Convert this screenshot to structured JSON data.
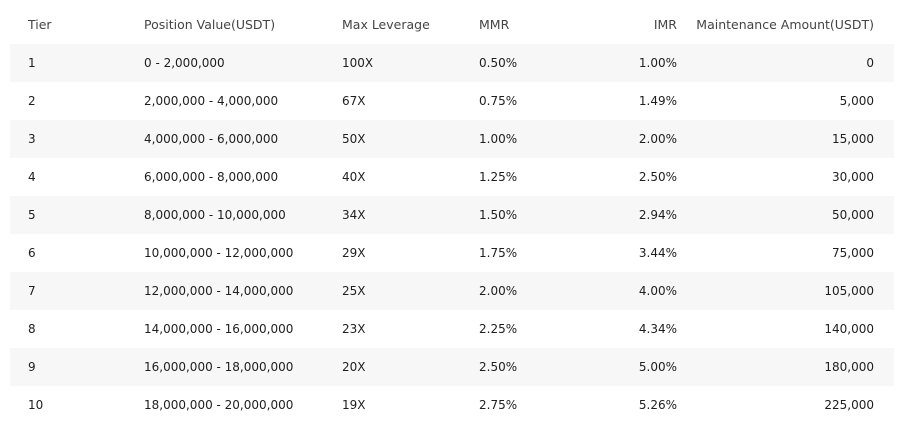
{
  "table": {
    "headers": [
      "Tier",
      "Position Value(USDT)",
      "Max Leverage",
      "MMR",
      "IMR",
      "Maintenance Amount(USDT)"
    ],
    "rows": [
      [
        "1",
        "0 - 2,000,000",
        "100X",
        "0.50%",
        "1.00%",
        "0"
      ],
      [
        "2",
        "2,000,000 - 4,000,000",
        "67X",
        "0.75%",
        "1.49%",
        "5,000"
      ],
      [
        "3",
        "4,000,000 - 6,000,000",
        "50X",
        "1.00%",
        "2.00%",
        "15,000"
      ],
      [
        "4",
        "6,000,000 - 8,000,000",
        "40X",
        "1.25%",
        "2.50%",
        "30,000"
      ],
      [
        "5",
        "8,000,000 - 10,000,000",
        "34X",
        "1.50%",
        "2.94%",
        "50,000"
      ],
      [
        "6",
        "10,000,000 - 12,000,000",
        "29X",
        "1.75%",
        "3.44%",
        "75,000"
      ],
      [
        "7",
        "12,000,000 - 14,000,000",
        "25X",
        "2.00%",
        "4.00%",
        "105,000"
      ],
      [
        "8",
        "14,000,000 - 16,000,000",
        "23X",
        "2.25%",
        "4.34%",
        "140,000"
      ],
      [
        "9",
        "16,000,000 - 18,000,000",
        "20X",
        "2.50%",
        "5.00%",
        "180,000"
      ],
      [
        "10",
        "18,000,000 - 20,000,000",
        "19X",
        "2.75%",
        "5.26%",
        "225,000"
      ]
    ]
  }
}
